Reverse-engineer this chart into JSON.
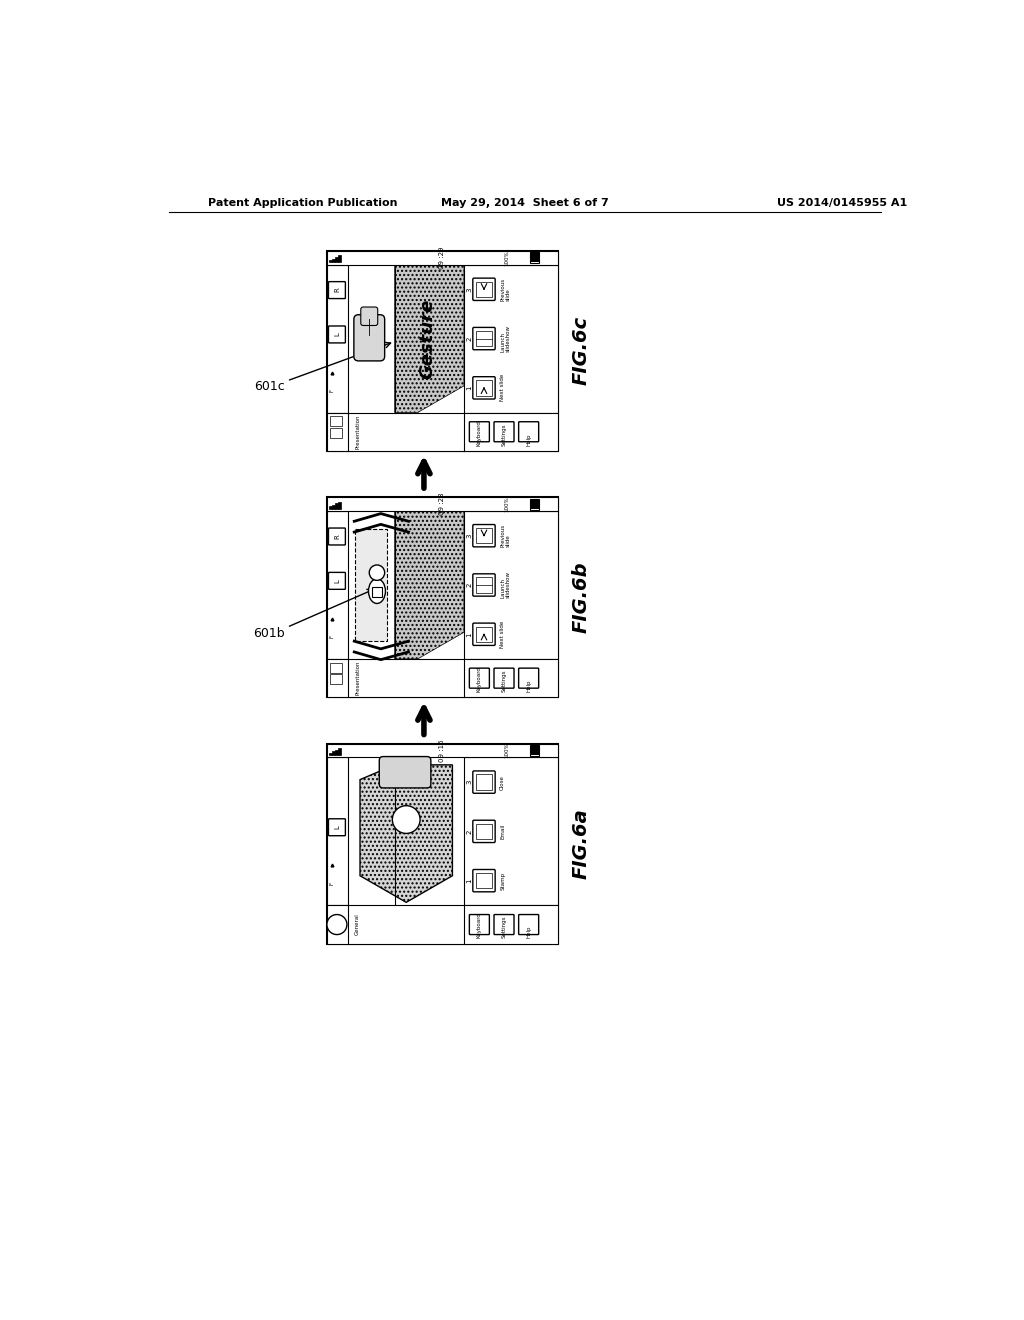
{
  "title_left": "Patent Application Publication",
  "title_mid": "May 29, 2014  Sheet 6 of 7",
  "title_right": "US 2014/0145955 A1",
  "bg_color": "#ffffff"
}
